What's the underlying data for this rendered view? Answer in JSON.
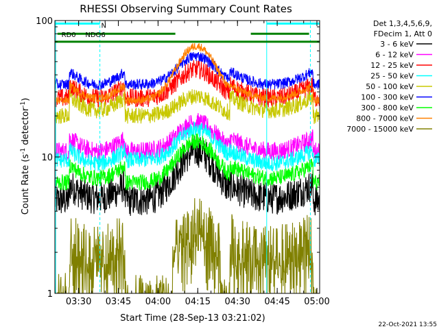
{
  "chart_data": {
    "type": "line",
    "title": "RHESSI Observing Summary Count Rates",
    "xlabel": "Start Time (28-Sep-13 03:21:02)",
    "ylabel_main": "Count Rate (s",
    "ylabel_sup1": "-1",
    "ylabel_mid": " detector",
    "ylabel_sup2": "-1",
    "ylabel_end": ")",
    "ylog": true,
    "ylim": [
      1,
      100
    ],
    "xlim_minutes": [
      0,
      100
    ],
    "x_ticks": [
      {
        "label": "03:30",
        "minutes": 8.97
      },
      {
        "label": "03:45",
        "minutes": 23.97
      },
      {
        "label": "04:00",
        "minutes": 38.97
      },
      {
        "label": "04:15",
        "minutes": 53.97
      },
      {
        "label": "04:30",
        "minutes": 68.97
      },
      {
        "label": "04:45",
        "minutes": 83.97
      },
      {
        "label": "05:00",
        "minutes": 98.97
      }
    ],
    "y_ticks": [
      {
        "label": "1",
        "value": 1
      },
      {
        "label": "10",
        "value": 10
      },
      {
        "label": "100",
        "value": 100
      }
    ],
    "legend_header": [
      "Det 1,3,4,5,6,9,",
      "FDecim 1, Att 0"
    ],
    "series": [
      {
        "name": "3 - 6 keV",
        "color": "#000000",
        "sun": [
          5.0,
          11.0
        ],
        "night": 4.8,
        "spread": 0.12,
        "steps": false
      },
      {
        "name": "6 - 12 keV",
        "color": "#ff00ff",
        "sun": [
          11.0,
          18.0
        ],
        "night": 11.0,
        "spread": 0.07,
        "steps": false
      },
      {
        "name": "12 - 25 keV",
        "color": "#ff0000",
        "sun": [
          27.0,
          44.0
        ],
        "night": 27.0,
        "spread": 0.07,
        "steps": false
      },
      {
        "name": "25 - 50 keV",
        "color": "#00ffff",
        "sun": [
          9.0,
          16.0
        ],
        "night": 9.5,
        "spread": 0.06,
        "steps": false
      },
      {
        "name": "50 - 100 keV",
        "color": "#c8c800",
        "sun": [
          22.0,
          28.0
        ],
        "night": 20.0,
        "spread": 0.06,
        "steps": false
      },
      {
        "name": "100 - 300 keV",
        "color": "#0000ff",
        "sun": [
          34.0,
          55.0
        ],
        "night": 34.0,
        "spread": 0.04,
        "steps": false
      },
      {
        "name": "300 - 800 keV",
        "color": "#00ff00",
        "sun": [
          7.0,
          13.0
        ],
        "night": 6.5,
        "spread": 0.06,
        "steps": false
      },
      {
        "name": "800 - 7000 keV",
        "color": "#ff8000",
        "sun": [
          27.0,
          65.0
        ],
        "night": 26.0,
        "spread": 0.03,
        "steps": false
      },
      {
        "name": "7000 - 15000 keV",
        "color": "#808000",
        "sun": [
          2.0,
          3.2
        ],
        "night": 1.3,
        "spread": 0.2,
        "steps": true
      }
    ],
    "sun_intervals": [
      [
        5.5,
        26.5
      ],
      [
        66.0,
        97.5
      ]
    ],
    "night_interval": [
      26.5,
      66.0
    ],
    "peak_minute": 53.5,
    "attenuator_bars": [
      {
        "label": "RD0",
        "from_min": 0.0,
        "to_min": 100.0,
        "value": 70,
        "color": "#008000"
      },
      {
        "label": "",
        "from_min": 1.0,
        "to_min": 45.5,
        "value": 80,
        "color": "#008000"
      },
      {
        "label": "",
        "from_min": 74.0,
        "to_min": 96.0,
        "value": 80,
        "color": "#008000"
      }
    ],
    "saa_label": "N",
    "saa_bars": [
      {
        "from_min": 0.0,
        "to_min": 17.0,
        "value": 95
      },
      {
        "from_min": 80.0,
        "to_min": 100.0,
        "value": 95
      }
    ],
    "other_label": "NDO6",
    "dashed_lines_min": [
      17.0,
      96.5
    ],
    "solid_lines_min": [
      0.3,
      80.0
    ],
    "date_stamp": "22-Oct-2021 13:55"
  }
}
